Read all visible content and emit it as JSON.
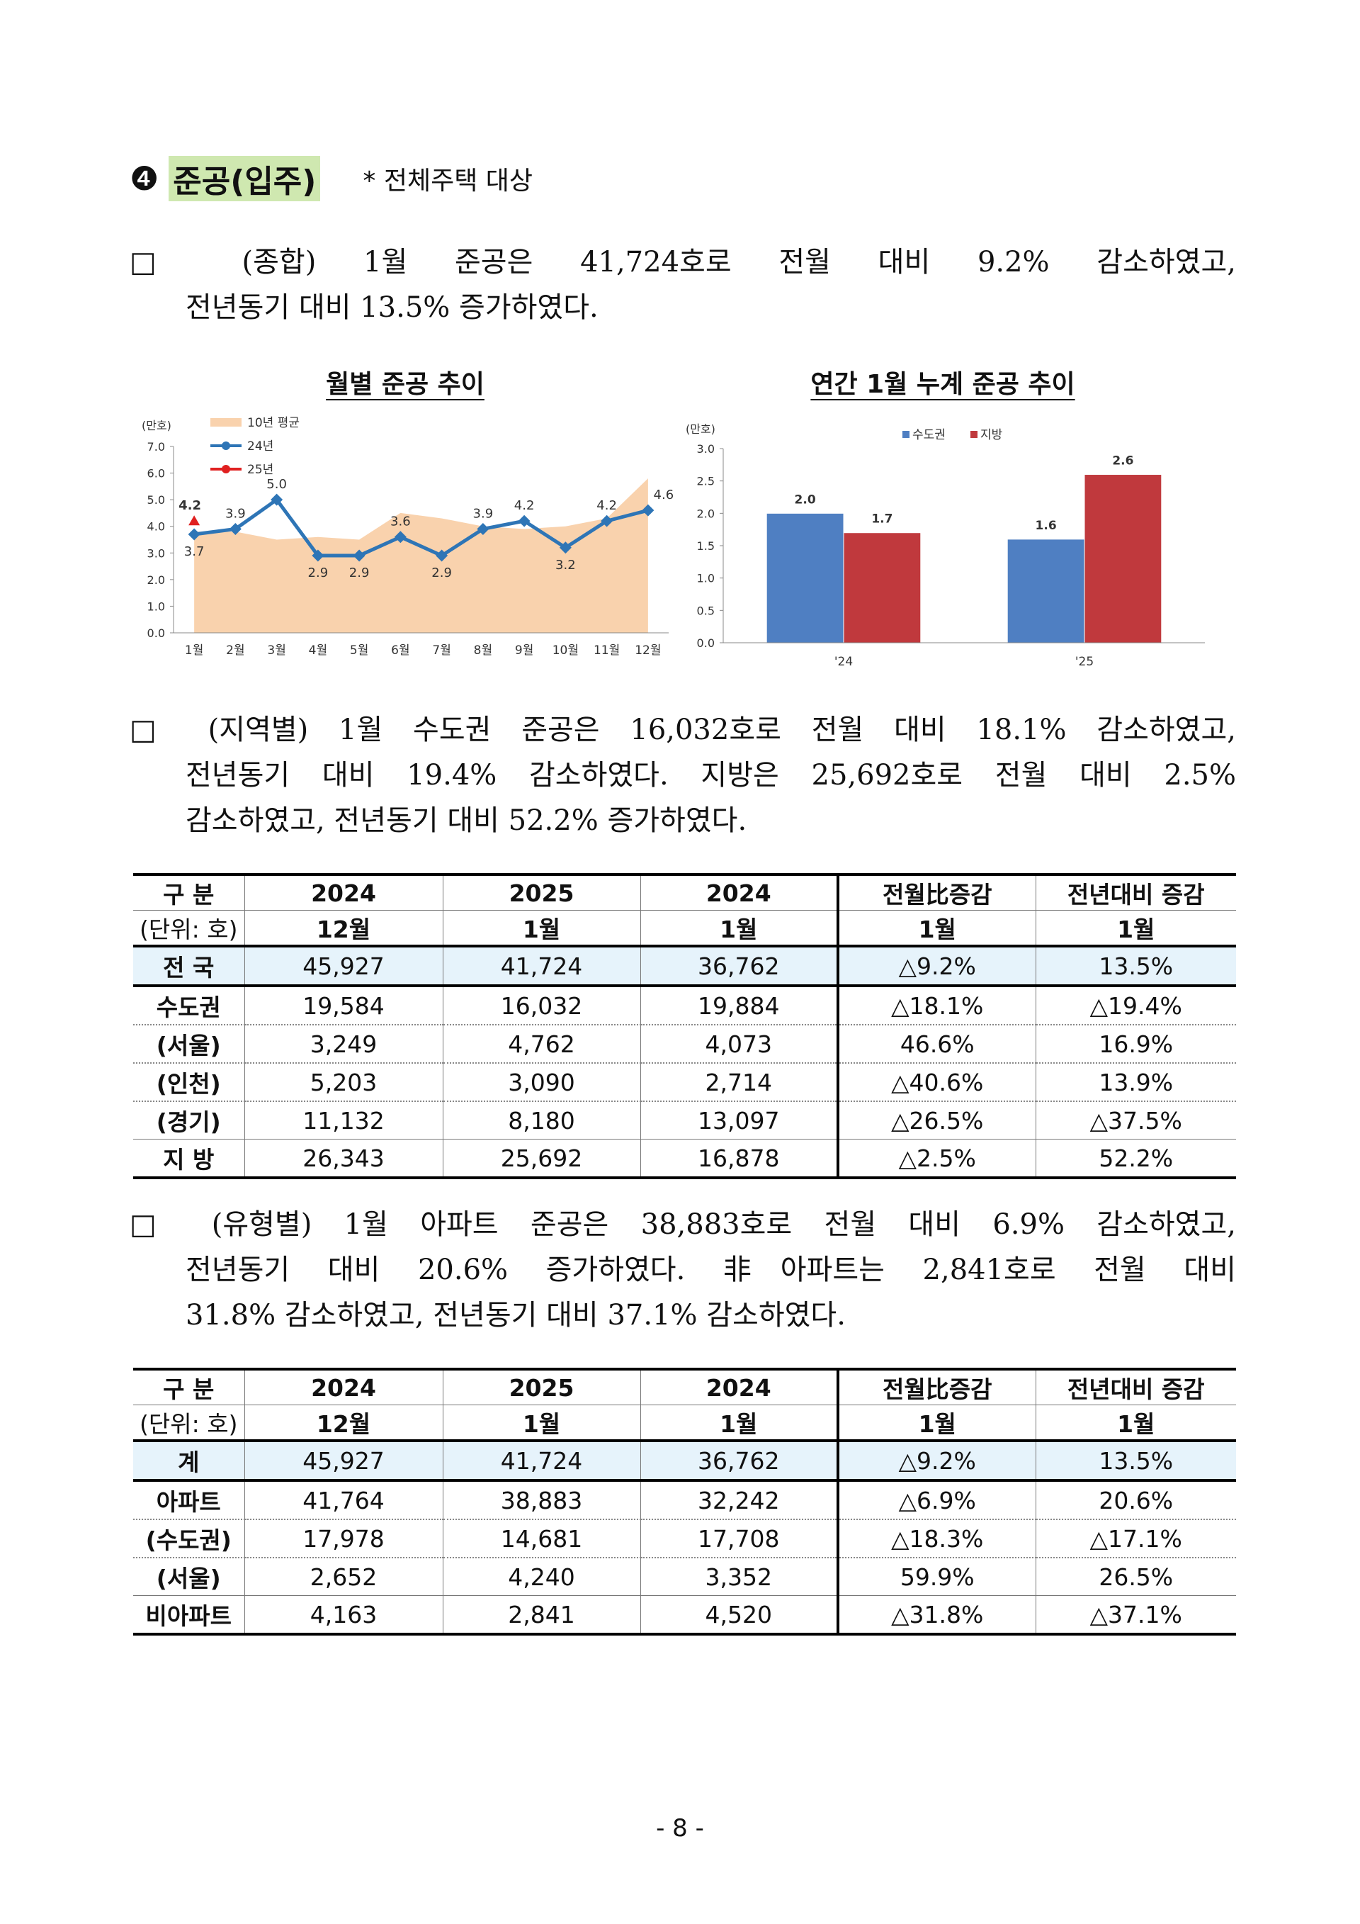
{
  "heading": {
    "number": "❹",
    "title": "준공(입주)",
    "note": "* 전체주택 대상"
  },
  "paragraphs": [
    [
      "□ (종합) 1월 준공은 41,724호로 전월 대비 9.2% 감소하였고,",
      "전년동기 대비 13.5% 증가하였다."
    ],
    [
      "□ (지역별) 1월 수도권 준공은 16,032호로 전월 대비 18.1% 감소하였고,",
      "전년동기 대비 19.4% 감소하였다. 지방은 25,692호로 전월 대비 2.5%",
      "감소하였고, 전년동기 대비 52.2% 증가하였다."
    ],
    [
      "□ (유형별) 1월 아파트 준공은 38,883호로 전월 대비 6.9% 감소하였고,",
      "전년동기 대비 20.6% 증가하였다. 非아파트는 2,841호로 전월 대비",
      "31.8% 감소하였고, 전년동기 대비 37.1% 감소하였다."
    ]
  ],
  "chart_data": [
    {
      "type": "line",
      "title": "월별 준공 추이",
      "unit": "(만호)",
      "categories": [
        "1월",
        "2월",
        "3월",
        "4월",
        "5월",
        "6월",
        "7월",
        "8월",
        "9월",
        "10월",
        "11월",
        "12월"
      ],
      "series": [
        {
          "name": "10년 평균",
          "style": "area",
          "color": "#f9d2ad",
          "values": [
            3.8,
            3.8,
            3.5,
            3.6,
            3.5,
            4.5,
            4.3,
            4.0,
            3.9,
            4.0,
            4.3,
            5.8
          ]
        },
        {
          "name": "24년",
          "color": "#2e75b6",
          "values": [
            3.7,
            3.9,
            5.0,
            2.9,
            2.9,
            3.6,
            2.9,
            3.9,
            4.2,
            3.2,
            4.2,
            4.6
          ],
          "value_labels": [
            "3.7",
            "3.9",
            "5.0",
            "2.9",
            "2.9",
            "3.6",
            "2.9",
            "3.9",
            "4.2",
            "3.2",
            "4.2",
            "4.6"
          ]
        },
        {
          "name": "25년",
          "color": "#e02020",
          "values": [
            4.2,
            null,
            null,
            null,
            null,
            null,
            null,
            null,
            null,
            null,
            null,
            null
          ],
          "value_labels": [
            "4.2",
            null,
            null,
            null,
            null,
            null,
            null,
            null,
            null,
            null,
            null,
            null
          ]
        }
      ],
      "ylim": [
        0,
        7
      ],
      "yticks": [
        {
          "value": 0,
          "label": "0.0"
        },
        {
          "value": 1,
          "label": "1.0"
        },
        {
          "value": 2,
          "label": "2.0"
        },
        {
          "value": 3,
          "label": "3.0"
        },
        {
          "value": 4,
          "label": "4.0"
        },
        {
          "value": 5,
          "label": "5.0"
        },
        {
          "value": 6,
          "label": "6.0"
        },
        {
          "value": 7,
          "label": "7.0"
        }
      ]
    },
    {
      "type": "bar",
      "title": "연간 1월 누계 준공 추이",
      "unit": "(만호)",
      "categories": [
        "'24",
        "'25"
      ],
      "series": [
        {
          "name": "수도권",
          "color": "#4f7fc2",
          "values": [
            2.0,
            1.6
          ],
          "value_labels": [
            "2.0",
            "1.6"
          ]
        },
        {
          "name": "지방",
          "color": "#c0393d",
          "values": [
            1.7,
            2.6
          ]
        }
      ],
      "ylim": [
        0,
        3
      ],
      "yticks": [
        {
          "value": 0,
          "label": "0.0"
        },
        0.5,
        {
          "value": 1,
          "label": "1.0"
        },
        1.5,
        {
          "value": 2,
          "label": "2.0"
        },
        2.5,
        {
          "value": 3,
          "label": "3.0"
        }
      ]
    }
  ],
  "tables": [
    {
      "header": [
        [
          "구 분",
          "2024",
          "2025",
          "2024",
          "전월比증감",
          "전년대비 증감"
        ],
        [
          "(단위: 호)",
          "12월",
          "1월",
          "1월",
          "1월",
          "1월"
        ]
      ],
      "rows": [
        [
          "전 국",
          "45,927",
          "41,724",
          "36,762",
          "△9.2%",
          "13.5%"
        ],
        [
          "수도권",
          "19,584",
          "16,032",
          "19,884",
          "△18.1%",
          "△19.4%"
        ],
        [
          "(서울)",
          "3,249",
          "4,762",
          "4,073",
          "46.6%",
          "16.9%"
        ],
        [
          "(인천)",
          "5,203",
          "3,090",
          "2,714",
          "△40.6%",
          "13.9%"
        ],
        [
          "(경기)",
          "11,132",
          "8,180",
          "13,097",
          "△26.5%",
          "△37.5%"
        ],
        [
          "지 방",
          "26,343",
          "25,692",
          "16,878",
          "△2.5%",
          "52.2%"
        ]
      ]
    },
    {
      "header": [
        [
          "구 분",
          "2024",
          "2025",
          "2024",
          "전월比증감",
          "전년대비 증감"
        ],
        [
          "(단위: 호)",
          "12월",
          "1월",
          "1월",
          "1월",
          "1월"
        ]
      ],
      "rows": [
        [
          "계",
          "45,927",
          "41,724",
          "36,762",
          "△9.2%",
          "13.5%"
        ],
        [
          "아파트",
          "41,764",
          "38,883",
          "32,242",
          "△6.9%",
          "20.6%"
        ],
        [
          "(수도권)",
          "17,978",
          "14,681",
          "17,708",
          "△18.3%",
          "△17.1%"
        ],
        [
          "(서울)",
          "2,652",
          "4,240",
          "3,352",
          "59.9%",
          "26.5%"
        ],
        [
          "비아파트",
          "4,163",
          "2,841",
          "4,520",
          "△31.8%",
          "△37.1%"
        ]
      ]
    }
  ],
  "page_number": "- 8 -"
}
